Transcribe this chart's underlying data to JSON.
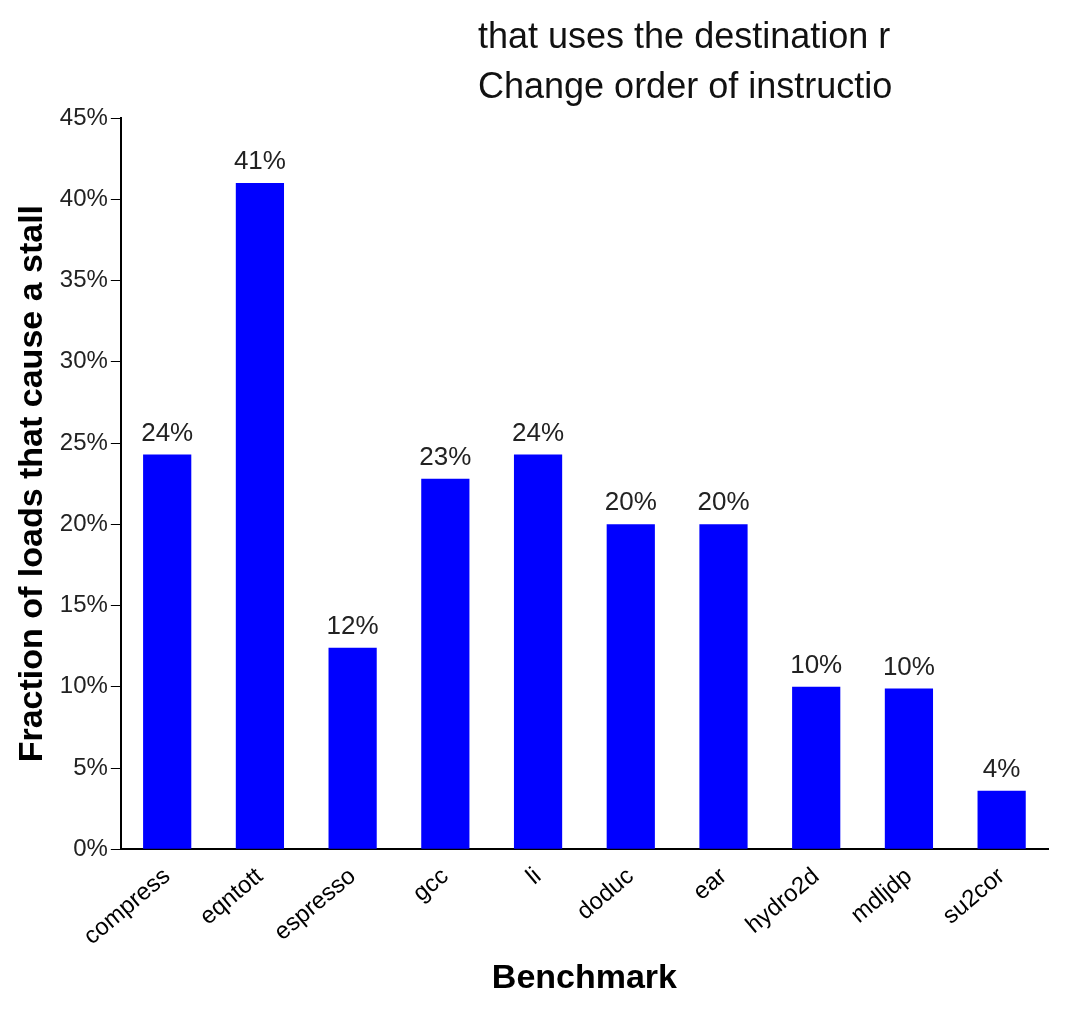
{
  "chart_data": {
    "type": "bar",
    "xlabel": "Benchmark",
    "ylabel": "Fraction of loads that cause a stall",
    "categories": [
      "compress",
      "eqntott",
      "espresso",
      "gcc",
      "li",
      "doduc",
      "ear",
      "hydro2d",
      "mdljdp",
      "su2cor"
    ],
    "values": [
      24.3,
      41,
      12.4,
      22.8,
      24.3,
      20,
      20,
      10,
      9.9,
      3.6
    ],
    "value_labels": [
      "24%",
      "41%",
      "12%",
      "23%",
      "24%",
      "20%",
      "20%",
      "10%",
      "10%",
      "4%"
    ],
    "color": "#0000ff",
    "ylim": [
      0,
      45
    ],
    "yticks": [
      {
        "value": 0,
        "label": "0%"
      },
      {
        "value": 5,
        "label": "5%"
      },
      {
        "value": 10,
        "label": "10%"
      },
      {
        "value": 15,
        "label": "15%"
      },
      {
        "value": 20,
        "label": "20%"
      },
      {
        "value": 25,
        "label": "25%"
      },
      {
        "value": 30,
        "label": "30%"
      },
      {
        "value": 35,
        "label": "35%"
      },
      {
        "value": 40,
        "label": "40%"
      },
      {
        "value": 45,
        "label": "45%"
      }
    ],
    "annotations": [
      "that uses the destination r",
      "Change order of instructio"
    ],
    "grid": false,
    "legend": false
  }
}
